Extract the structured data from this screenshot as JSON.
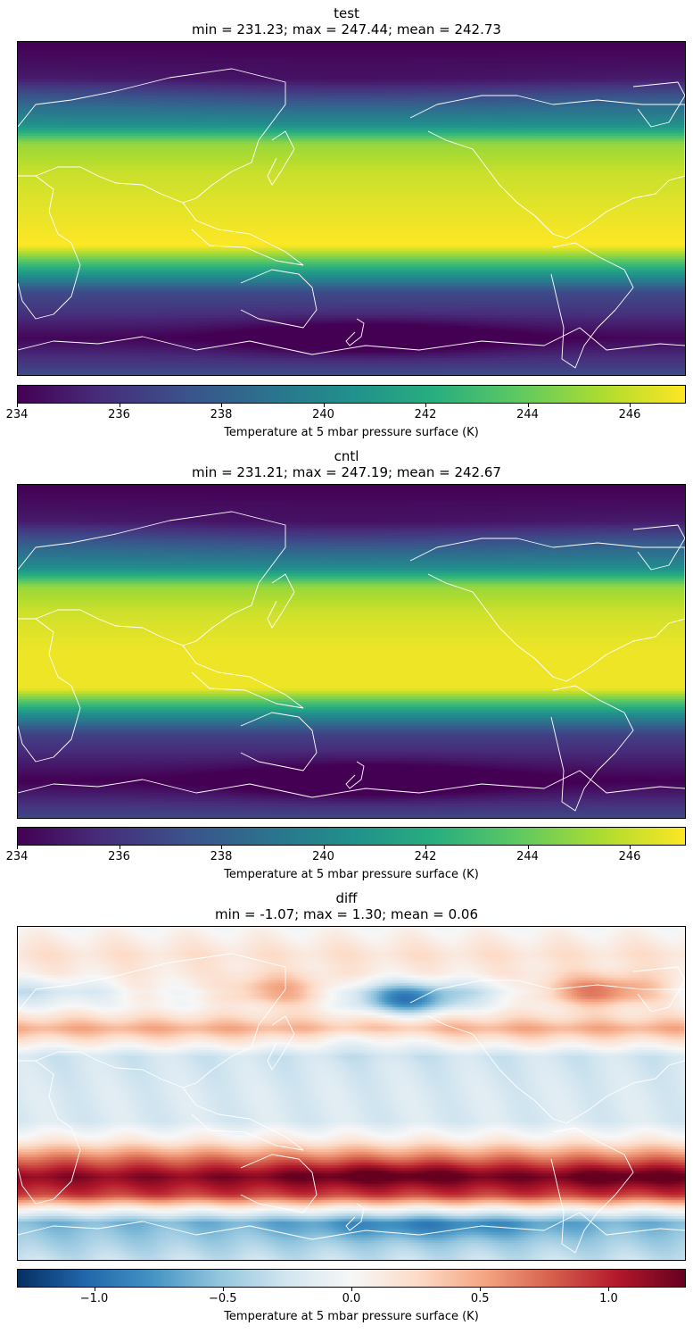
{
  "chart_data": [
    {
      "type": "heatmap",
      "panel": "test",
      "title": "test",
      "subtitle": "min = 231.23; max = 247.44; mean = 242.73",
      "colormap": "viridis",
      "colorbar": {
        "label": "Temperature at 5 mbar pressure surface (K)",
        "vmin": 234.0,
        "vmax": 247.1,
        "ticks": [
          234,
          236,
          238,
          240,
          242,
          244,
          246
        ],
        "tick_labels": [
          "234",
          "236",
          "238",
          "240",
          "242",
          "244",
          "246"
        ]
      },
      "stats": {
        "min": 231.23,
        "max": 247.44,
        "mean": 242.73
      },
      "zonal_profile": {
        "lat": [
          90,
          70,
          55,
          45,
          35,
          20,
          0,
          -20,
          -35,
          -45,
          -55,
          -70,
          -90
        ],
        "value": [
          234.0,
          234.8,
          238.5,
          240.5,
          245.0,
          246.0,
          246.6,
          247.1,
          241.0,
          237.0,
          236.0,
          234.2,
          237.0
        ]
      },
      "coastline_color": "#ffffff"
    },
    {
      "type": "heatmap",
      "panel": "cntl",
      "title": "cntl",
      "subtitle": "min = 231.21; max = 247.19; mean = 242.67",
      "colormap": "viridis",
      "colorbar": {
        "label": "Temperature at 5 mbar pressure surface (K)",
        "vmin": 234.0,
        "vmax": 247.1,
        "ticks": [
          234,
          236,
          238,
          240,
          242,
          244,
          246
        ],
        "tick_labels": [
          "234",
          "236",
          "238",
          "240",
          "242",
          "244",
          "246"
        ]
      },
      "stats": {
        "min": 231.21,
        "max": 247.19,
        "mean": 242.67
      },
      "zonal_profile": {
        "lat": [
          90,
          70,
          55,
          45,
          35,
          20,
          0,
          -20,
          -35,
          -45,
          -55,
          -70,
          -90
        ],
        "value": [
          234.0,
          234.8,
          238.3,
          240.3,
          245.0,
          246.2,
          246.8,
          246.8,
          240.0,
          236.5,
          235.5,
          234.0,
          236.8
        ]
      },
      "coastline_color": "#ffffff"
    },
    {
      "type": "heatmap",
      "panel": "diff",
      "title": "diff",
      "subtitle": "min = -1.07; max = 1.30; mean = 0.06",
      "colormap": "RdBu_r",
      "colorbar": {
        "label": "Temperature at 5 mbar pressure surface (K)",
        "vmin": -1.3,
        "vmax": 1.3,
        "ticks": [
          -1.0,
          -0.5,
          0.0,
          0.5,
          1.0
        ],
        "tick_labels": [
          "−1.0",
          "−0.5",
          "0.0",
          "0.5",
          "1.0"
        ]
      },
      "stats": {
        "min": -1.07,
        "max": 1.3,
        "mean": 0.06
      },
      "zonal_profile": {
        "lat": [
          90,
          75,
          65,
          55,
          48,
          35,
          20,
          0,
          -15,
          -25,
          -35,
          -45,
          -55,
          -62,
          -70,
          -90
        ],
        "value": [
          0.0,
          0.2,
          0.1,
          -0.3,
          -0.1,
          0.5,
          -0.25,
          -0.2,
          -0.2,
          0.1,
          0.7,
          1.2,
          0.9,
          0.1,
          -0.6,
          -0.3
        ]
      },
      "coastline_color": "#ffffff"
    }
  ]
}
